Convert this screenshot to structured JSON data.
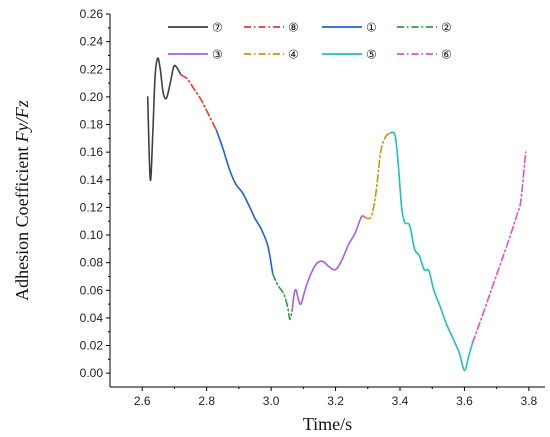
{
  "chart_data": {
    "type": "line",
    "xlabel": "Time/s",
    "ylabel_text": "Adhesion Coefficient ",
    "ylabel_var": "Fy/Fz",
    "xlim": [
      2.5,
      3.85
    ],
    "ylim": [
      -0.01,
      0.26
    ],
    "xticks": [
      2.6,
      2.8,
      3.0,
      3.2,
      3.4,
      3.6,
      3.8
    ],
    "xtick_labels": [
      "2.6",
      "2.8",
      "3.0",
      "3.2",
      "3.4",
      "3.6",
      "3.8"
    ],
    "yticks": [
      0.0,
      0.02,
      0.04,
      0.06,
      0.08,
      0.1,
      0.12,
      0.14,
      0.16,
      0.18,
      0.2,
      0.22,
      0.24,
      0.26
    ],
    "ytick_labels": [
      "0.00",
      "0.02",
      "0.04",
      "0.06",
      "0.08",
      "0.10",
      "0.12",
      "0.14",
      "0.16",
      "0.18",
      "0.20",
      "0.22",
      "0.24",
      "0.26"
    ],
    "grid": false,
    "legend_position": "top-right",
    "legend_rows": [
      [
        "⑦",
        "⑧",
        "①",
        "②"
      ],
      [
        "③",
        "④",
        "⑤",
        "⑥"
      ]
    ],
    "series": [
      {
        "name": "⑦",
        "color": "#404040",
        "dash": "solid",
        "points": [
          [
            2.617,
            0.2
          ],
          [
            2.625,
            0.14
          ],
          [
            2.633,
            0.175
          ],
          [
            2.64,
            0.215
          ],
          [
            2.648,
            0.228
          ],
          [
            2.656,
            0.22
          ],
          [
            2.665,
            0.203
          ],
          [
            2.675,
            0.199
          ],
          [
            2.687,
            0.21
          ],
          [
            2.698,
            0.222
          ],
          [
            2.708,
            0.221
          ],
          [
            2.72,
            0.216
          ]
        ]
      },
      {
        "name": "⑧",
        "color": "#e8392d",
        "dash": "dashdot",
        "points": [
          [
            2.72,
            0.216
          ],
          [
            2.74,
            0.213
          ],
          [
            2.76,
            0.206
          ],
          [
            2.78,
            0.199
          ],
          [
            2.8,
            0.19
          ],
          [
            2.83,
            0.176
          ]
        ]
      },
      {
        "name": "①",
        "color": "#2160d4",
        "dash": "solid",
        "points": [
          [
            2.83,
            0.176
          ],
          [
            2.85,
            0.163
          ],
          [
            2.87,
            0.148
          ],
          [
            2.89,
            0.137
          ],
          [
            2.91,
            0.131
          ],
          [
            2.93,
            0.122
          ],
          [
            2.95,
            0.112
          ],
          [
            2.97,
            0.104
          ],
          [
            2.99,
            0.092
          ],
          [
            3.005,
            0.072
          ]
        ]
      },
      {
        "name": "②",
        "color": "#2e9e3a",
        "dash": "dashdot",
        "points": [
          [
            3.005,
            0.072
          ],
          [
            3.02,
            0.064
          ],
          [
            3.04,
            0.057
          ],
          [
            3.052,
            0.047
          ],
          [
            3.058,
            0.039
          ],
          [
            3.065,
            0.045
          ]
        ]
      },
      {
        "name": "③",
        "color": "#a55fe0",
        "dash": "solid",
        "points": [
          [
            3.065,
            0.045
          ],
          [
            3.072,
            0.058
          ],
          [
            3.078,
            0.06
          ],
          [
            3.085,
            0.053
          ],
          [
            3.093,
            0.05
          ],
          [
            3.105,
            0.06
          ],
          [
            3.12,
            0.07
          ],
          [
            3.14,
            0.079
          ],
          [
            3.16,
            0.081
          ],
          [
            3.18,
            0.077
          ],
          [
            3.2,
            0.075
          ],
          [
            3.22,
            0.082
          ],
          [
            3.24,
            0.093
          ],
          [
            3.26,
            0.101
          ],
          [
            3.28,
            0.113
          ],
          [
            3.29,
            0.113
          ]
        ]
      },
      {
        "name": "④",
        "color": "#c8960b",
        "dash": "dashdot",
        "points": [
          [
            3.29,
            0.113
          ],
          [
            3.31,
            0.113
          ],
          [
            3.325,
            0.13
          ],
          [
            3.34,
            0.16
          ],
          [
            3.355,
            0.171
          ],
          [
            3.37,
            0.174
          ]
        ]
      },
      {
        "name": "⑤",
        "color": "#1fbfbf",
        "dash": "solid",
        "points": [
          [
            3.37,
            0.174
          ],
          [
            3.385,
            0.172
          ],
          [
            3.395,
            0.15
          ],
          [
            3.405,
            0.12
          ],
          [
            3.415,
            0.109
          ],
          [
            3.43,
            0.107
          ],
          [
            3.445,
            0.09
          ],
          [
            3.46,
            0.085
          ],
          [
            3.475,
            0.075
          ],
          [
            3.49,
            0.074
          ],
          [
            3.505,
            0.06
          ],
          [
            3.525,
            0.048
          ],
          [
            3.545,
            0.035
          ],
          [
            3.565,
            0.025
          ],
          [
            3.585,
            0.014
          ],
          [
            3.6,
            0.002
          ],
          [
            3.613,
            0.012
          ],
          [
            3.625,
            0.022
          ]
        ]
      },
      {
        "name": "⑥",
        "color": "#e64fc3",
        "dash": "dashdot",
        "points": [
          [
            3.625,
            0.022
          ],
          [
            3.65,
            0.038
          ],
          [
            3.68,
            0.058
          ],
          [
            3.71,
            0.078
          ],
          [
            3.74,
            0.098
          ],
          [
            3.765,
            0.116
          ],
          [
            3.775,
            0.125
          ],
          [
            3.79,
            0.16
          ]
        ]
      }
    ]
  }
}
